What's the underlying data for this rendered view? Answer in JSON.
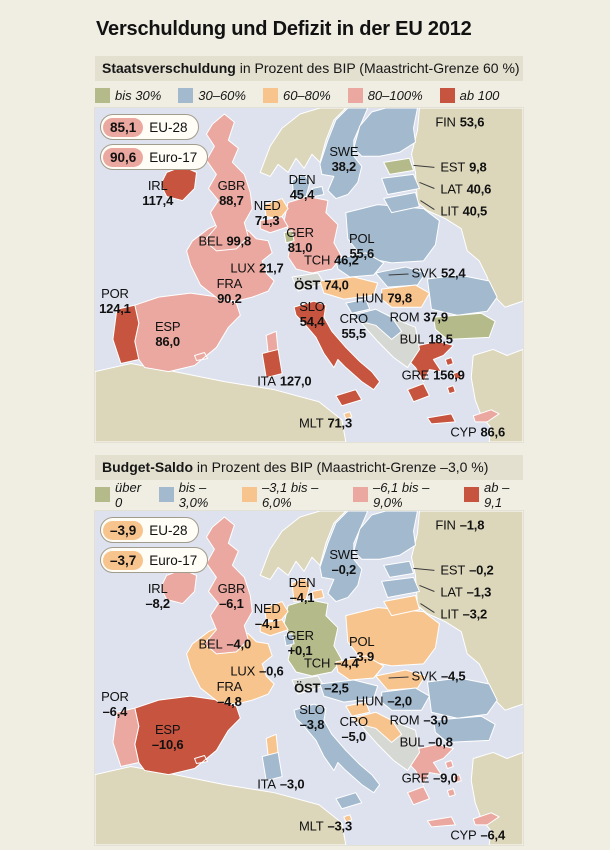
{
  "title": "Verschuldung und Defizit in der EU 2012",
  "palette": {
    "green": "#b5ba8b",
    "blue": "#a3b9ce",
    "orange": "#f7c48e",
    "pink": "#eaa8a0",
    "red": "#c6543f",
    "sea": "#dde2ee",
    "far_land": "#dcd6bb",
    "neutral_land": "#d6d8d4",
    "header_bar": "#e3e0d0",
    "page_bg": "#f0eee2"
  },
  "sections": [
    {
      "id": "staatsverschuldung",
      "header_bold": "Staatsverschuldung",
      "header_rest": " in Prozent des BIP (Maastricht-Grenze 60 %)",
      "badge_color": "#eaa8a0",
      "badges": [
        {
          "value": "85,1",
          "label": "EU-28"
        },
        {
          "value": "90,6",
          "label": "Euro-17"
        }
      ],
      "legend": [
        {
          "label": "bis 30%",
          "color": "#b5ba8b"
        },
        {
          "label": "30–60%",
          "color": "#a3b9ce"
        },
        {
          "label": "60–80%",
          "color": "#f7c48e"
        },
        {
          "label": "80–100%",
          "color": "#eaa8a0"
        },
        {
          "label": "ab 100",
          "color": "#c6543f"
        }
      ],
      "countries": [
        {
          "code": "IRL",
          "value": "117,4",
          "color": "#c6543f"
        },
        {
          "code": "GBR",
          "value": "88,7",
          "color": "#eaa8a0"
        },
        {
          "code": "POR",
          "value": "124,1",
          "color": "#c6543f"
        },
        {
          "code": "ESP",
          "value": "86,0",
          "color": "#eaa8a0"
        },
        {
          "code": "FRA",
          "value": "90,2",
          "color": "#eaa8a0"
        },
        {
          "code": "BEL",
          "value": "99,8",
          "color": "#eaa8a0"
        },
        {
          "code": "NED",
          "value": "71,3",
          "color": "#f7c48e"
        },
        {
          "code": "LUX",
          "value": "21,7",
          "color": "#b5ba8b"
        },
        {
          "code": "GER",
          "value": "81,0",
          "color": "#eaa8a0"
        },
        {
          "code": "DEN",
          "value": "45,4",
          "color": "#a3b9ce"
        },
        {
          "code": "SWE",
          "value": "38,2",
          "color": "#a3b9ce"
        },
        {
          "code": "FIN",
          "value": "53,6",
          "color": "#a3b9ce"
        },
        {
          "code": "EST",
          "value": "9,8",
          "color": "#b5ba8b"
        },
        {
          "code": "LAT",
          "value": "40,6",
          "color": "#a3b9ce"
        },
        {
          "code": "LIT",
          "value": "40,5",
          "color": "#a3b9ce"
        },
        {
          "code": "POL",
          "value": "55,6",
          "color": "#a3b9ce"
        },
        {
          "code": "TCH",
          "value": "46,2",
          "color": "#a3b9ce"
        },
        {
          "code": "SVK",
          "value": "52,4",
          "color": "#a3b9ce"
        },
        {
          "code": "ÖST",
          "value": "74,0",
          "color": "#f7c48e"
        },
        {
          "code": "HUN",
          "value": "79,8",
          "color": "#f7c48e"
        },
        {
          "code": "SLO",
          "value": "54,4",
          "color": "#a3b9ce"
        },
        {
          "code": "CRO",
          "value": "55,5",
          "color": "#a3b9ce"
        },
        {
          "code": "ROM",
          "value": "37,9",
          "color": "#a3b9ce"
        },
        {
          "code": "BUL",
          "value": "18,5",
          "color": "#b5ba8b"
        },
        {
          "code": "GRE",
          "value": "156,9",
          "color": "#c6543f"
        },
        {
          "code": "ITA",
          "value": "127,0",
          "color": "#c6543f"
        },
        {
          "code": "MLT",
          "value": "71,3",
          "color": "#f7c48e"
        },
        {
          "code": "CYP",
          "value": "86,6",
          "color": "#eaa8a0"
        }
      ]
    },
    {
      "id": "budget-saldo",
      "header_bold": "Budget-Saldo",
      "header_rest": " in Prozent des BIP (Maastricht-Grenze –3,0 %)",
      "badge_color": "#f7c48e",
      "badges": [
        {
          "value": "–3,9",
          "label": "EU-28"
        },
        {
          "value": "–3,7",
          "label": "Euro-17"
        }
      ],
      "legend": [
        {
          "label": "über 0",
          "color": "#b5ba8b"
        },
        {
          "label": "bis –3,0%",
          "color": "#a3b9ce"
        },
        {
          "label": "–3,1 bis –6,0%",
          "color": "#f7c48e"
        },
        {
          "label": "–6,1 bis –9,0%",
          "color": "#eaa8a0"
        },
        {
          "label": "ab –9,1",
          "color": "#c6543f"
        }
      ],
      "countries": [
        {
          "code": "IRL",
          "value": "–8,2",
          "color": "#eaa8a0"
        },
        {
          "code": "GBR",
          "value": "–6,1",
          "color": "#eaa8a0"
        },
        {
          "code": "POR",
          "value": "–6,4",
          "color": "#eaa8a0"
        },
        {
          "code": "ESP",
          "value": "–10,6",
          "color": "#c6543f"
        },
        {
          "code": "FRA",
          "value": "–4,8",
          "color": "#f7c48e"
        },
        {
          "code": "BEL",
          "value": "–4,0",
          "color": "#f7c48e"
        },
        {
          "code": "NED",
          "value": "–4,1",
          "color": "#f7c48e"
        },
        {
          "code": "LUX",
          "value": "–0,6",
          "color": "#a3b9ce"
        },
        {
          "code": "GER",
          "value": "+0,1",
          "color": "#b5ba8b"
        },
        {
          "code": "DEN",
          "value": "–4,1",
          "color": "#f7c48e"
        },
        {
          "code": "SWE",
          "value": "–0,2",
          "color": "#a3b9ce"
        },
        {
          "code": "FIN",
          "value": "–1,8",
          "color": "#a3b9ce"
        },
        {
          "code": "EST",
          "value": "–0,2",
          "color": "#a3b9ce"
        },
        {
          "code": "LAT",
          "value": "–1,3",
          "color": "#a3b9ce"
        },
        {
          "code": "LIT",
          "value": "–3,2",
          "color": "#f7c48e"
        },
        {
          "code": "POL",
          "value": "–3,9",
          "color": "#f7c48e"
        },
        {
          "code": "TCH",
          "value": "–4,4",
          "color": "#f7c48e"
        },
        {
          "code": "SVK",
          "value": "–4,5",
          "color": "#f7c48e"
        },
        {
          "code": "ÖST",
          "value": "–2,5",
          "color": "#a3b9ce"
        },
        {
          "code": "HUN",
          "value": "–2,0",
          "color": "#a3b9ce"
        },
        {
          "code": "SLO",
          "value": "–3,8",
          "color": "#f7c48e"
        },
        {
          "code": "CRO",
          "value": "–5,0",
          "color": "#f7c48e"
        },
        {
          "code": "ROM",
          "value": "–3,0",
          "color": "#a3b9ce"
        },
        {
          "code": "BUL",
          "value": "–0,8",
          "color": "#a3b9ce"
        },
        {
          "code": "GRE",
          "value": "–9,0",
          "color": "#eaa8a0"
        },
        {
          "code": "ITA",
          "value": "–3,0",
          "color": "#a3b9ce"
        },
        {
          "code": "MLT",
          "value": "–3,3",
          "color": "#f7c48e"
        },
        {
          "code": "CYP",
          "value": "–6,4",
          "color": "#eaa8a0"
        }
      ]
    }
  ],
  "chart_data": [
    {
      "type": "heatmap",
      "title": "Staatsverschuldung in Prozent des BIP (Maastricht-Grenze 60 %)",
      "categories": [
        "EU-28",
        "Euro-17",
        "IRL",
        "GBR",
        "POR",
        "ESP",
        "FRA",
        "BEL",
        "NED",
        "LUX",
        "GER",
        "DEN",
        "SWE",
        "FIN",
        "EST",
        "LAT",
        "LIT",
        "POL",
        "TCH",
        "SVK",
        "ÖST",
        "HUN",
        "SLO",
        "CRO",
        "ROM",
        "BUL",
        "GRE",
        "ITA",
        "MLT",
        "CYP"
      ],
      "values": [
        85.1,
        90.6,
        117.4,
        88.7,
        124.1,
        86.0,
        90.2,
        99.8,
        71.3,
        21.7,
        81.0,
        45.4,
        38.2,
        53.6,
        9.8,
        40.6,
        40.5,
        55.6,
        46.2,
        52.4,
        74.0,
        79.8,
        54.4,
        55.5,
        37.9,
        18.5,
        156.9,
        127.0,
        71.3,
        86.6
      ],
      "legend_bins": [
        "bis 30%",
        "30–60%",
        "60–80%",
        "80–100%",
        "ab 100"
      ]
    },
    {
      "type": "heatmap",
      "title": "Budget-Saldo in Prozent des BIP (Maastricht-Grenze –3,0 %)",
      "categories": [
        "EU-28",
        "Euro-17",
        "IRL",
        "GBR",
        "POR",
        "ESP",
        "FRA",
        "BEL",
        "NED",
        "LUX",
        "GER",
        "DEN",
        "SWE",
        "FIN",
        "EST",
        "LAT",
        "LIT",
        "POL",
        "TCH",
        "SVK",
        "ÖST",
        "HUN",
        "SLO",
        "CRO",
        "ROM",
        "BUL",
        "GRE",
        "ITA",
        "MLT",
        "CYP"
      ],
      "values": [
        -3.9,
        -3.7,
        -8.2,
        -6.1,
        -6.4,
        -10.6,
        -4.8,
        -4.0,
        -4.1,
        -0.6,
        0.1,
        -4.1,
        -0.2,
        -1.8,
        -0.2,
        -1.3,
        -3.2,
        -3.9,
        -4.4,
        -4.5,
        -2.5,
        -2.0,
        -3.8,
        -5.0,
        -3.0,
        -0.8,
        -9.0,
        -3.0,
        -3.3,
        -6.4
      ],
      "legend_bins": [
        "über 0",
        "bis –3,0%",
        "–3,1 bis –6,0%",
        "–6,1 bis –9,0%",
        "ab –9,1"
      ]
    }
  ]
}
